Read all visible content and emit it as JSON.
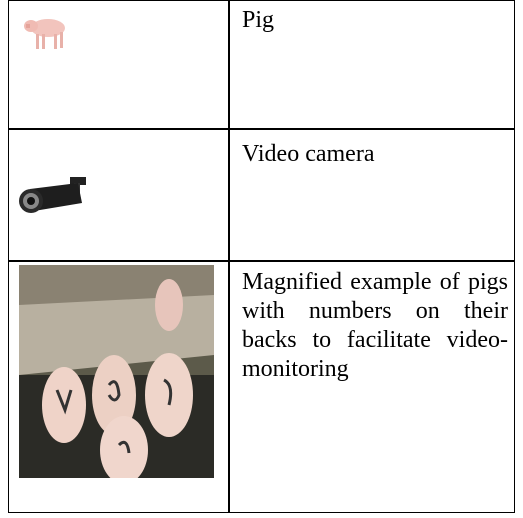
{
  "table": {
    "rows": [
      {
        "label": "Pig"
      },
      {
        "label": "Video camera"
      },
      {
        "label": "Magnified example of pigs with numbers on their backs to facilitate video-monitoring"
      }
    ]
  }
}
